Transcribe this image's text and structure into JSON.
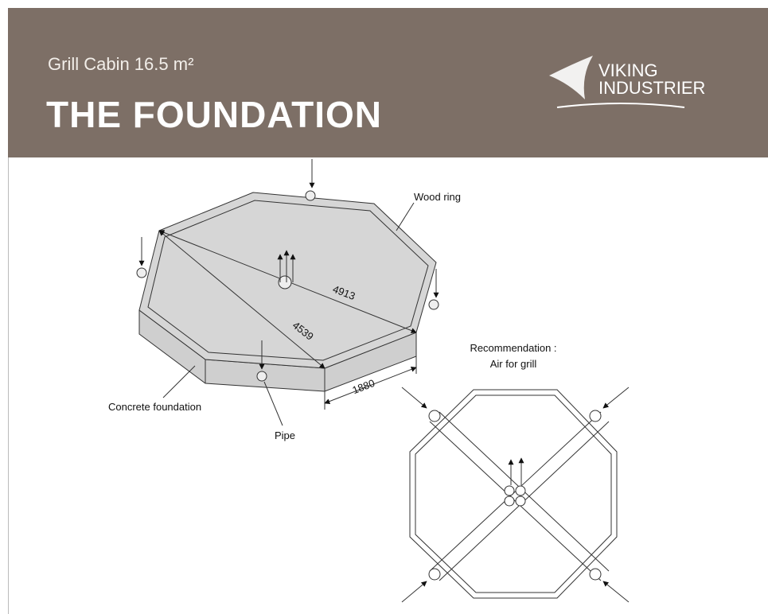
{
  "header": {
    "subtitle": "Grill Cabin 16.5 m²",
    "title": "THE FOUNDATION",
    "logo": {
      "line1": "VIKING",
      "line2": "INDUSTRIER"
    }
  },
  "diagram": {
    "labels": {
      "wood_ring": "Wood ring",
      "diagonal_long": "4913",
      "diagonal_short": "4539",
      "side": "1880",
      "concrete": "Concrete foundation",
      "pipe": "Pipe"
    }
  },
  "recommendation": {
    "line1": "Recommendation :",
    "line2": "Air for grill"
  }
}
